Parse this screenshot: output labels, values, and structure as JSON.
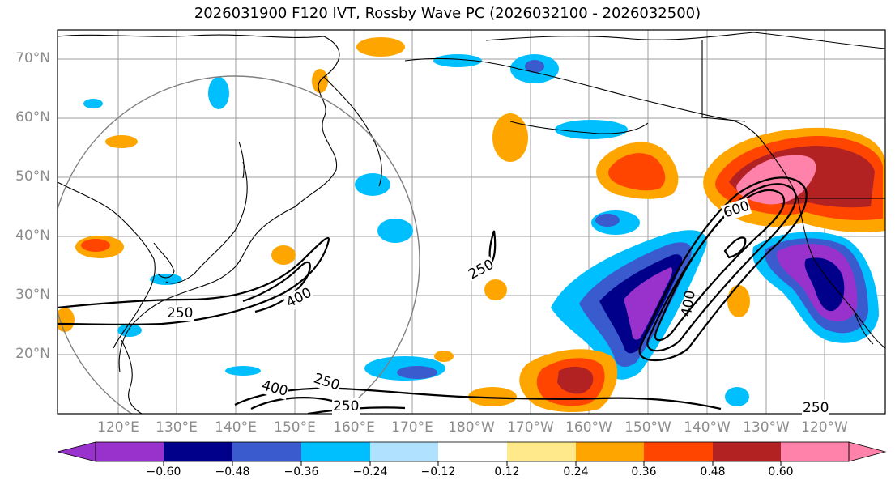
{
  "title": "2026031900 F120 IVT, Rossby Wave PC (2026032100 - 2026032500)",
  "lat_labels": [
    "70°N",
    "60°N",
    "50°N",
    "40°N",
    "30°N",
    "20°N"
  ],
  "lon_labels": [
    "120°E",
    "130°E",
    "140°E",
    "150°E",
    "160°E",
    "170°E",
    "180°W",
    "170°W",
    "160°W",
    "150°W",
    "140°W",
    "130°W",
    "120°W"
  ],
  "contour_labels": [
    "250",
    "400",
    "250",
    "400",
    "250",
    "250",
    "600",
    "400",
    "250"
  ],
  "colorbar": {
    "ticks": [
      "−0.60",
      "−0.48",
      "−0.36",
      "−0.24",
      "−0.12",
      "0.12",
      "0.24",
      "0.36",
      "0.48",
      "0.60"
    ],
    "colors": [
      "#9932cc",
      "#00008b",
      "#3a5bcd",
      "#00bfff",
      "#b0e2ff",
      "#ffffff",
      "#ffe98a",
      "#ffa500",
      "#ff4500",
      "#b22222",
      "#ff82ab"
    ]
  }
}
